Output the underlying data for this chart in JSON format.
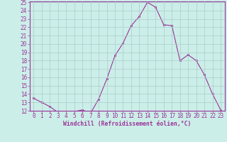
{
  "x": [
    0,
    1,
    2,
    3,
    4,
    5,
    6,
    7,
    8,
    9,
    10,
    11,
    12,
    13,
    14,
    15,
    16,
    17,
    18,
    19,
    20,
    21,
    22,
    23
  ],
  "y": [
    13.5,
    13.0,
    12.5,
    11.8,
    11.8,
    11.9,
    12.1,
    11.7,
    13.4,
    15.8,
    18.6,
    20.1,
    22.2,
    23.3,
    25.0,
    24.4,
    22.3,
    22.2,
    18.0,
    18.7,
    18.0,
    16.3,
    14.0,
    12.1
  ],
  "line_color": "#993399",
  "marker": "s",
  "marker_size": 2,
  "bg_color": "#cceee8",
  "grid_color": "#aacccc",
  "xlabel": "Windchill (Refroidissement éolien,°C)",
  "ylim": [
    12,
    25
  ],
  "xlim": [
    -0.5,
    23.5
  ],
  "yticks": [
    12,
    13,
    14,
    15,
    16,
    17,
    18,
    19,
    20,
    21,
    22,
    23,
    24,
    25
  ],
  "xticks": [
    0,
    1,
    2,
    3,
    4,
    5,
    6,
    7,
    8,
    9,
    10,
    11,
    12,
    13,
    14,
    15,
    16,
    17,
    18,
    19,
    20,
    21,
    22,
    23
  ],
  "tick_color": "#993399",
  "label_color": "#993399",
  "font_family": "monospace",
  "tick_fontsize": 5.5,
  "xlabel_fontsize": 5.8
}
